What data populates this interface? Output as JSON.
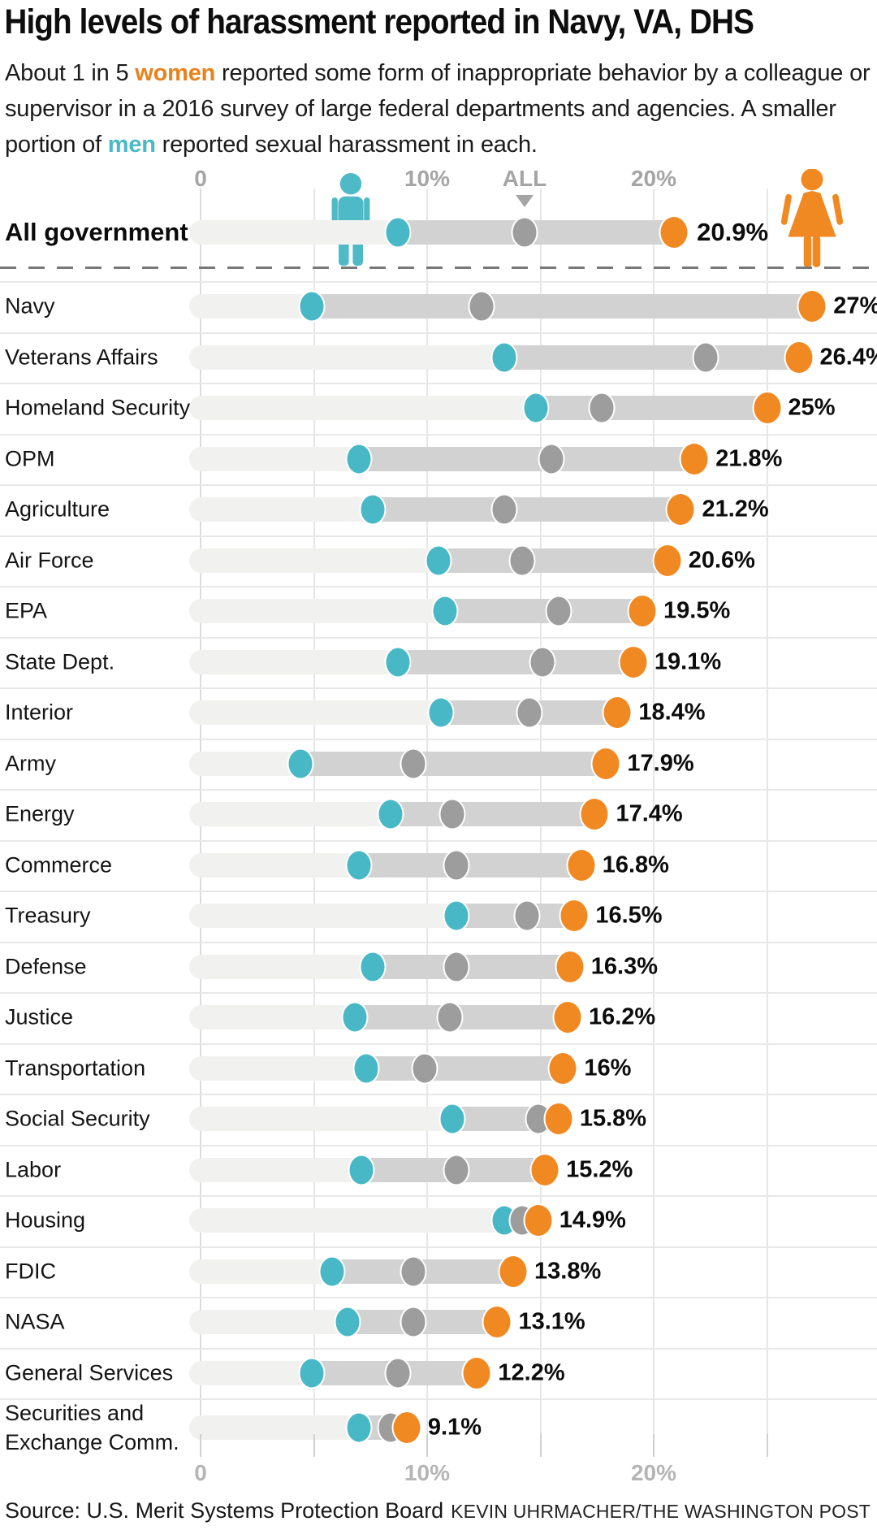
{
  "header": {
    "title": "High levels of harassment reported in Navy, VA, DHS",
    "subtitle": {
      "part1": "About 1 in 5 ",
      "women_word": "women",
      "part2": " reported some form of inappropriate behavior by a colleague or supervisor in a 2016 survey of large federal departments and agencies. A smaller portion of ",
      "men_word": "men",
      "part3": " reported sexual harassment in each."
    }
  },
  "colors": {
    "women": "#f08921",
    "men": "#49b8c6",
    "all": "#9d9d9d",
    "track": "#d2d2d2",
    "track_light": "#f1f1ef"
  },
  "chart_data": {
    "type": "dumbbell-dot-plot",
    "unit": "percent",
    "legend": {
      "teal_dot": "men",
      "orange_dot": "women",
      "gray_dot": "ALL"
    },
    "axis": {
      "top_ticks": [
        {
          "label": "0",
          "value": 0
        },
        {
          "label": "10%",
          "value": 10
        },
        {
          "label": "20%",
          "value": 20
        }
      ],
      "all_marker": {
        "label": "ALL",
        "value": 14.3
      },
      "bottom_ticks": [
        {
          "label": "0",
          "value": 0
        },
        {
          "label": "10%",
          "value": 10
        },
        {
          "label": "20%",
          "value": 20
        }
      ],
      "gridline_values": [
        0,
        5,
        10,
        15,
        20,
        25
      ],
      "tick_values": [
        0,
        5,
        10,
        15,
        20,
        25
      ],
      "xlim": [
        0,
        29
      ]
    },
    "all_government": {
      "label": "All government",
      "men": 8.7,
      "all": 14.3,
      "women": 20.9,
      "women_label": "20.9%"
    },
    "rows": [
      {
        "label": "Navy",
        "men": 4.9,
        "all": 12.4,
        "women": 27,
        "women_label": "27%"
      },
      {
        "label": "Veterans Affairs",
        "men": 13.4,
        "all": 22.3,
        "women": 26.4,
        "women_label": "26.4%"
      },
      {
        "label": "Homeland Security",
        "men": 14.8,
        "all": 17.7,
        "women": 25,
        "women_label": "25%"
      },
      {
        "label": "OPM",
        "men": 7.0,
        "all": 15.5,
        "women": 21.8,
        "women_label": "21.8%"
      },
      {
        "label": "Agriculture",
        "men": 7.6,
        "all": 13.4,
        "women": 21.2,
        "women_label": "21.2%"
      },
      {
        "label": "Air Force",
        "men": 10.5,
        "all": 14.2,
        "women": 20.6,
        "women_label": "20.6%"
      },
      {
        "label": "EPA",
        "men": 10.8,
        "all": 15.8,
        "women": 19.5,
        "women_label": "19.5%"
      },
      {
        "label": "State Dept.",
        "men": 8.7,
        "all": 15.1,
        "women": 19.1,
        "women_label": "19.1%"
      },
      {
        "label": "Interior",
        "men": 10.6,
        "all": 14.5,
        "women": 18.4,
        "women_label": "18.4%"
      },
      {
        "label": "Army",
        "men": 4.4,
        "all": 9.4,
        "women": 17.9,
        "women_label": "17.9%"
      },
      {
        "label": "Energy",
        "men": 8.4,
        "all": 11.1,
        "women": 17.4,
        "women_label": "17.4%"
      },
      {
        "label": "Commerce",
        "men": 7.0,
        "all": 11.3,
        "women": 16.8,
        "women_label": "16.8%"
      },
      {
        "label": "Treasury",
        "men": 11.3,
        "all": 14.4,
        "women": 16.5,
        "women_label": "16.5%"
      },
      {
        "label": "Defense",
        "men": 7.6,
        "all": 11.3,
        "women": 16.3,
        "women_label": "16.3%"
      },
      {
        "label": "Justice",
        "men": 6.8,
        "all": 11.0,
        "women": 16.2,
        "women_label": "16.2%"
      },
      {
        "label": "Transportation",
        "men": 7.3,
        "all": 9.9,
        "women": 16,
        "women_label": "16%"
      },
      {
        "label": "Social Security",
        "men": 11.1,
        "all": 14.9,
        "women": 15.8,
        "women_label": "15.8%"
      },
      {
        "label": "Labor",
        "men": 7.1,
        "all": 11.3,
        "women": 15.2,
        "women_label": "15.2%"
      },
      {
        "label": "Housing",
        "men": 13.4,
        "all": 14.2,
        "women": 14.9,
        "women_label": "14.9%"
      },
      {
        "label": "FDIC",
        "men": 5.8,
        "all": 9.4,
        "women": 13.8,
        "women_label": "13.8%"
      },
      {
        "label": "NASA",
        "men": 6.5,
        "all": 9.4,
        "women": 13.1,
        "women_label": "13.1%"
      },
      {
        "label": "General Services",
        "men": 4.9,
        "all": 8.7,
        "women": 12.2,
        "women_label": "12.2%"
      },
      {
        "label": "Securities and Exchange Comm.",
        "men": 7.0,
        "all": 8.4,
        "women": 9.1,
        "women_label": "9.1%"
      }
    ]
  },
  "footer": {
    "source": "Source: U.S. Merit Systems Protection Board",
    "credit": "KEVIN UHRMACHER/THE WASHINGTON POST"
  }
}
